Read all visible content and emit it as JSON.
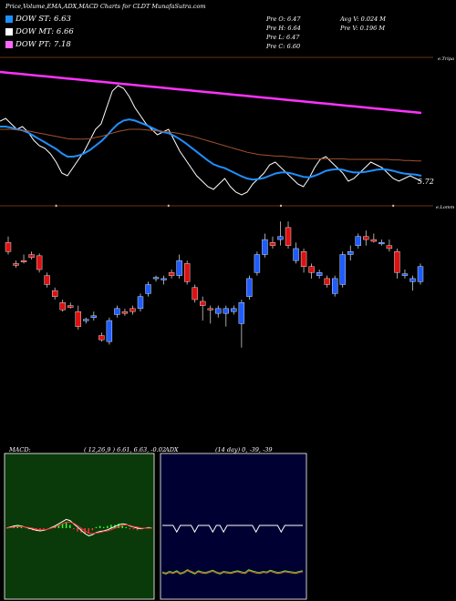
{
  "header": {
    "title": "Price,Volume,EMA,ADX,MACD Charts for CLDT MunafaSutra.com"
  },
  "legend": [
    {
      "label": "DOW ST: 6.63",
      "color": "#1e90ff"
    },
    {
      "label": "DOW MT: 6.66",
      "color": "#ffffff"
    },
    {
      "label": "DOW PT: 7.18",
      "color": "#ff66ff"
    }
  ],
  "stats": {
    "open": "Pre   O: 6.47",
    "high": "Pre   H: 6.64",
    "low": "Pre   L: 6.47",
    "close": "Pre   C: 6.60",
    "avg_volume": "Avg V: 0.024  M",
    "prev_volume": "Pre   V: 0.196  M"
  },
  "colors": {
    "background": "#000000",
    "up_candle": "#1e5cff",
    "down_candle": "#dd1111",
    "ema_short": "#1e90ff",
    "ema_mid": "#ffffff",
    "ema_long": "#ff33ff",
    "ema_brown": "#a0522d",
    "macd_bg": "#0a3a0a",
    "adx_bg": "#000033"
  },
  "top_axis_label": "e.Tripa",
  "bottom_axis_label": "e.Lomm",
  "chart_data": [
    {
      "type": "line",
      "name": "ema-panel",
      "value_label": "5.72",
      "x": [
        1,
        2,
        3,
        4,
        5,
        6,
        7,
        8,
        9,
        10,
        11,
        12,
        13,
        14,
        15,
        16,
        17,
        18,
        19,
        20,
        21,
        22,
        23,
        24,
        25,
        26,
        27,
        28,
        29,
        30,
        31,
        32,
        33,
        34,
        35,
        36,
        37,
        38,
        39,
        40,
        41,
        42,
        43,
        44,
        45,
        46,
        47,
        48,
        49,
        50,
        51,
        52,
        53,
        54,
        55,
        56,
        57,
        58,
        59,
        60,
        61,
        62,
        63,
        64,
        65,
        66,
        67,
        68,
        69,
        70,
        71,
        72,
        73,
        74,
        75,
        76
      ],
      "series": [
        {
          "name": "",
          "color": "#ffffff",
          "values": [
            7.05,
            7.1,
            7.0,
            6.9,
            6.95,
            6.85,
            6.7,
            6.6,
            6.55,
            6.45,
            6.3,
            6.1,
            6.05,
            6.2,
            6.35,
            6.5,
            6.7,
            6.9,
            7.0,
            7.3,
            7.6,
            7.7,
            7.65,
            7.5,
            7.3,
            7.15,
            7.0,
            6.9,
            6.8,
            6.85,
            6.9,
            6.7,
            6.5,
            6.35,
            6.2,
            6.05,
            5.95,
            5.85,
            5.8,
            5.9,
            6.0,
            5.85,
            5.75,
            5.7,
            5.75,
            5.9,
            6.0,
            6.1,
            6.25,
            6.3,
            6.2,
            6.1,
            6.0,
            5.9,
            5.85,
            6.0,
            6.2,
            6.35,
            6.4,
            6.3,
            6.2,
            6.1,
            5.95,
            6.0,
            6.1,
            6.2,
            6.3,
            6.25,
            6.2,
            6.1,
            6.0,
            5.95,
            6.0,
            6.05,
            6.0,
            5.95
          ]
        },
        {
          "name": "",
          "color": "#1e90ff",
          "values": [
            6.95,
            6.95,
            6.93,
            6.9,
            6.88,
            6.84,
            6.78,
            6.72,
            6.66,
            6.6,
            6.54,
            6.46,
            6.4,
            6.4,
            6.42,
            6.46,
            6.52,
            6.6,
            6.68,
            6.78,
            6.9,
            7.0,
            7.06,
            7.08,
            7.06,
            7.02,
            6.98,
            6.93,
            6.88,
            6.85,
            6.83,
            6.78,
            6.72,
            6.65,
            6.57,
            6.49,
            6.41,
            6.33,
            6.26,
            6.22,
            6.19,
            6.14,
            6.09,
            6.04,
            6.0,
            5.98,
            5.99,
            6.01,
            6.05,
            6.09,
            6.11,
            6.11,
            6.09,
            6.06,
            6.03,
            6.02,
            6.05,
            6.09,
            6.14,
            6.16,
            6.17,
            6.16,
            6.13,
            6.11,
            6.11,
            6.12,
            6.14,
            6.16,
            6.17,
            6.16,
            6.14,
            6.11,
            6.09,
            6.08,
            6.07,
            6.05
          ]
        },
        {
          "name": "",
          "color": "#a0522d",
          "values": [
            6.9,
            6.9,
            6.9,
            6.89,
            6.88,
            6.87,
            6.85,
            6.83,
            6.81,
            6.79,
            6.77,
            6.75,
            6.73,
            6.72,
            6.72,
            6.72,
            6.73,
            6.75,
            6.77,
            6.8,
            6.83,
            6.86,
            6.88,
            6.9,
            6.9,
            6.9,
            6.89,
            6.88,
            6.87,
            6.86,
            6.85,
            6.84,
            6.82,
            6.8,
            6.78,
            6.75,
            6.72,
            6.69,
            6.66,
            6.63,
            6.6,
            6.57,
            6.54,
            6.51,
            6.48,
            6.46,
            6.44,
            6.43,
            6.42,
            6.41,
            6.41,
            6.4,
            6.39,
            6.38,
            6.37,
            6.36,
            6.36,
            6.36,
            6.36,
            6.36,
            6.36,
            6.36,
            6.35,
            6.35,
            6.35,
            6.35,
            6.35,
            6.35,
            6.35,
            6.35,
            6.34,
            6.34,
            6.33,
            6.33,
            6.32,
            6.32
          ]
        },
        {
          "name": "",
          "color": "#ff33ff",
          "values": [
            7.95,
            7.94,
            7.93,
            7.92,
            7.91,
            7.9,
            7.89,
            7.88,
            7.87,
            7.86,
            7.85,
            7.84,
            7.83,
            7.82,
            7.81,
            7.8,
            7.79,
            7.78,
            7.77,
            7.76,
            7.75,
            7.74,
            7.73,
            7.72,
            7.71,
            7.7,
            7.69,
            7.68,
            7.67,
            7.66,
            7.65,
            7.64,
            7.63,
            7.62,
            7.61,
            7.6,
            7.59,
            7.58,
            7.57,
            7.56,
            7.55,
            7.54,
            7.53,
            7.52,
            7.51,
            7.5,
            7.49,
            7.48,
            7.47,
            7.46,
            7.45,
            7.44,
            7.43,
            7.42,
            7.41,
            7.4,
            7.39,
            7.38,
            7.37,
            7.36,
            7.35,
            7.34,
            7.33,
            7.32,
            7.31,
            7.3,
            7.29,
            7.28,
            7.27,
            7.26,
            7.25,
            7.24,
            7.23,
            7.22,
            7.21,
            7.2
          ]
        }
      ]
    },
    {
      "type": "candlestick",
      "name": "price-panel",
      "candles": [
        {
          "o": 6.9,
          "h": 7.0,
          "l": 6.7,
          "c": 6.75
        },
        {
          "o": 6.55,
          "h": 6.6,
          "l": 6.48,
          "c": 6.52
        },
        {
          "o": 6.6,
          "h": 6.7,
          "l": 6.55,
          "c": 6.58
        },
        {
          "o": 6.7,
          "h": 6.75,
          "l": 6.62,
          "c": 6.65
        },
        {
          "o": 6.68,
          "h": 6.72,
          "l": 6.4,
          "c": 6.45
        },
        {
          "o": 6.35,
          "h": 6.4,
          "l": 6.15,
          "c": 6.2
        },
        {
          "o": 6.1,
          "h": 6.15,
          "l": 5.95,
          "c": 6.0
        },
        {
          "o": 5.9,
          "h": 5.95,
          "l": 5.75,
          "c": 5.78
        },
        {
          "o": 5.85,
          "h": 5.9,
          "l": 5.8,
          "c": 5.82
        },
        {
          "o": 5.75,
          "h": 5.85,
          "l": 5.45,
          "c": 5.5
        },
        {
          "o": 5.6,
          "h": 5.65,
          "l": 5.55,
          "c": 5.62
        },
        {
          "o": 5.65,
          "h": 5.75,
          "l": 5.6,
          "c": 5.68
        },
        {
          "o": 5.35,
          "h": 5.4,
          "l": 5.25,
          "c": 5.28
        },
        {
          "o": 5.25,
          "h": 5.65,
          "l": 5.2,
          "c": 5.6
        },
        {
          "o": 5.7,
          "h": 5.85,
          "l": 5.65,
          "c": 5.8
        },
        {
          "o": 5.75,
          "h": 5.8,
          "l": 5.68,
          "c": 5.72
        },
        {
          "o": 5.8,
          "h": 5.85,
          "l": 5.7,
          "c": 5.75
        },
        {
          "o": 5.8,
          "h": 6.05,
          "l": 5.75,
          "c": 6.0
        },
        {
          "o": 6.05,
          "h": 6.25,
          "l": 6.0,
          "c": 6.2
        },
        {
          "o": 6.3,
          "h": 6.35,
          "l": 6.25,
          "c": 6.32
        },
        {
          "o": 6.28,
          "h": 6.35,
          "l": 6.2,
          "c": 6.3
        },
        {
          "o": 6.4,
          "h": 6.45,
          "l": 6.3,
          "c": 6.35
        },
        {
          "o": 6.35,
          "h": 6.7,
          "l": 6.3,
          "c": 6.6
        },
        {
          "o": 6.55,
          "h": 6.6,
          "l": 6.2,
          "c": 6.25
        },
        {
          "o": 6.15,
          "h": 6.2,
          "l": 5.9,
          "c": 5.95
        },
        {
          "o": 5.92,
          "h": 6.0,
          "l": 5.6,
          "c": 5.85
        },
        {
          "o": 5.8,
          "h": 5.85,
          "l": 5.55,
          "c": 5.78
        },
        {
          "o": 5.72,
          "h": 5.85,
          "l": 5.65,
          "c": 5.8
        },
        {
          "o": 5.72,
          "h": 5.85,
          "l": 5.5,
          "c": 5.8
        },
        {
          "o": 5.75,
          "h": 5.85,
          "l": 5.7,
          "c": 5.8
        },
        {
          "o": 5.55,
          "h": 5.95,
          "l": 5.15,
          "c": 5.9
        },
        {
          "o": 6.0,
          "h": 6.35,
          "l": 5.95,
          "c": 6.3
        },
        {
          "o": 6.4,
          "h": 6.75,
          "l": 6.35,
          "c": 6.7
        },
        {
          "o": 6.7,
          "h": 7.05,
          "l": 6.65,
          "c": 6.95
        },
        {
          "o": 6.9,
          "h": 7.0,
          "l": 6.8,
          "c": 6.85
        },
        {
          "o": 6.95,
          "h": 7.25,
          "l": 6.85,
          "c": 7.0
        },
        {
          "o": 7.15,
          "h": 7.25,
          "l": 6.8,
          "c": 6.85
        },
        {
          "o": 6.6,
          "h": 6.9,
          "l": 6.55,
          "c": 6.8
        },
        {
          "o": 6.75,
          "h": 6.8,
          "l": 6.4,
          "c": 6.5
        },
        {
          "o": 6.5,
          "h": 6.55,
          "l": 6.3,
          "c": 6.4
        },
        {
          "o": 6.35,
          "h": 6.45,
          "l": 6.3,
          "c": 6.4
        },
        {
          "o": 6.3,
          "h": 6.35,
          "l": 6.15,
          "c": 6.2
        },
        {
          "o": 6.05,
          "h": 6.35,
          "l": 6.0,
          "c": 6.3
        },
        {
          "o": 6.2,
          "h": 6.75,
          "l": 6.15,
          "c": 6.7
        },
        {
          "o": 6.7,
          "h": 6.85,
          "l": 6.6,
          "c": 6.75
        },
        {
          "o": 6.85,
          "h": 7.05,
          "l": 6.8,
          "c": 7.0
        },
        {
          "o": 7.0,
          "h": 7.1,
          "l": 6.85,
          "c": 6.95
        },
        {
          "o": 6.95,
          "h": 7.05,
          "l": 6.9,
          "c": 6.92
        },
        {
          "o": 6.88,
          "h": 6.95,
          "l": 6.85,
          "c": 6.9
        },
        {
          "o": 6.85,
          "h": 6.95,
          "l": 6.75,
          "c": 6.8
        },
        {
          "o": 6.75,
          "h": 6.8,
          "l": 6.3,
          "c": 6.4
        },
        {
          "o": 6.35,
          "h": 6.45,
          "l": 6.3,
          "c": 6.38
        },
        {
          "o": 6.25,
          "h": 6.35,
          "l": 6.1,
          "c": 6.3
        },
        {
          "o": 6.25,
          "h": 6.55,
          "l": 6.2,
          "c": 6.5
        }
      ]
    },
    {
      "type": "line",
      "name": "macd-panel",
      "panel_label": "MACD:",
      "panel_params": "( 12,26,9 ) 6.61, 6.63, -0.02",
      "x": [
        1,
        2,
        3,
        4,
        5,
        6,
        7,
        8,
        9,
        10,
        11,
        12,
        13,
        14,
        15,
        16,
        17,
        18,
        19,
        20,
        21,
        22,
        23,
        24,
        25,
        26,
        27,
        28,
        29,
        30,
        31,
        32,
        33,
        34,
        35,
        36,
        37,
        38,
        39,
        40
      ],
      "series": [
        {
          "name": "",
          "color": "#ffffff",
          "values": [
            0,
            0.02,
            0.04,
            0.05,
            0.04,
            0.02,
            0,
            -0.02,
            -0.04,
            -0.05,
            -0.04,
            -0.02,
            0.01,
            0.04,
            0.08,
            0.12,
            0.16,
            0.14,
            0.08,
            0.02,
            -0.04,
            -0.1,
            -0.14,
            -0.12,
            -0.08,
            -0.06,
            -0.05,
            -0.03,
            0.0,
            0.03,
            0.06,
            0.08,
            0.07,
            0.04,
            0.02,
            0.0,
            -0.01,
            0.0,
            0.01,
            0.0
          ]
        },
        {
          "name": "",
          "color": "#ff3333",
          "values": [
            0,
            0.01,
            0.02,
            0.03,
            0.03,
            0.02,
            0.01,
            0,
            -0.02,
            -0.03,
            -0.03,
            -0.02,
            0.0,
            0.02,
            0.05,
            0.08,
            0.11,
            0.11,
            0.09,
            0.05,
            0.0,
            -0.05,
            -0.09,
            -0.1,
            -0.09,
            -0.08,
            -0.06,
            -0.05,
            -0.03,
            0.0,
            0.02,
            0.05,
            0.06,
            0.05,
            0.03,
            0.02,
            0.0,
            0.0,
            0.0,
            0.0
          ]
        }
      ]
    },
    {
      "type": "line",
      "name": "adx-panel",
      "panel_label": "ADX",
      "panel_params": "(14 day) 0, -39, -39",
      "x": [
        1,
        2,
        3,
        4,
        5,
        6,
        7,
        8,
        9,
        10,
        11,
        12,
        13,
        14,
        15,
        16,
        17,
        18,
        19,
        20,
        21,
        22,
        23,
        24,
        25,
        26,
        27,
        28,
        29,
        30,
        31,
        32,
        33,
        34,
        35,
        36,
        37,
        38,
        39,
        40
      ],
      "series": [
        {
          "name": "",
          "color": "#ffffff",
          "values": [
            100,
            100,
            100,
            100,
            88,
            100,
            100,
            100,
            100,
            88,
            100,
            100,
            100,
            100,
            88,
            100,
            100,
            88,
            100,
            100,
            100,
            100,
            100,
            100,
            100,
            100,
            88,
            100,
            100,
            100,
            100,
            100,
            100,
            88,
            100,
            100,
            100,
            100,
            100,
            100
          ]
        },
        {
          "name": "",
          "color": "#33ff33",
          "values": [
            14,
            12,
            15,
            13,
            16,
            12,
            14,
            18,
            15,
            12,
            16,
            14,
            13,
            15,
            17,
            14,
            12,
            15,
            14,
            13,
            15,
            16,
            14,
            13,
            18,
            16,
            14,
            13,
            15,
            14,
            17,
            15,
            13,
            14,
            16,
            15,
            14,
            13,
            15,
            16
          ]
        },
        {
          "name": "",
          "color": "#ff3333",
          "values": [
            14,
            13,
            15,
            13,
            15,
            13,
            14,
            17,
            16,
            13,
            15,
            14,
            13,
            15,
            16,
            14,
            13,
            15,
            14,
            13,
            15,
            15,
            14,
            13,
            17,
            15,
            14,
            13,
            15,
            14,
            16,
            15,
            13,
            14,
            15,
            15,
            14,
            13,
            15,
            15
          ]
        }
      ]
    }
  ]
}
